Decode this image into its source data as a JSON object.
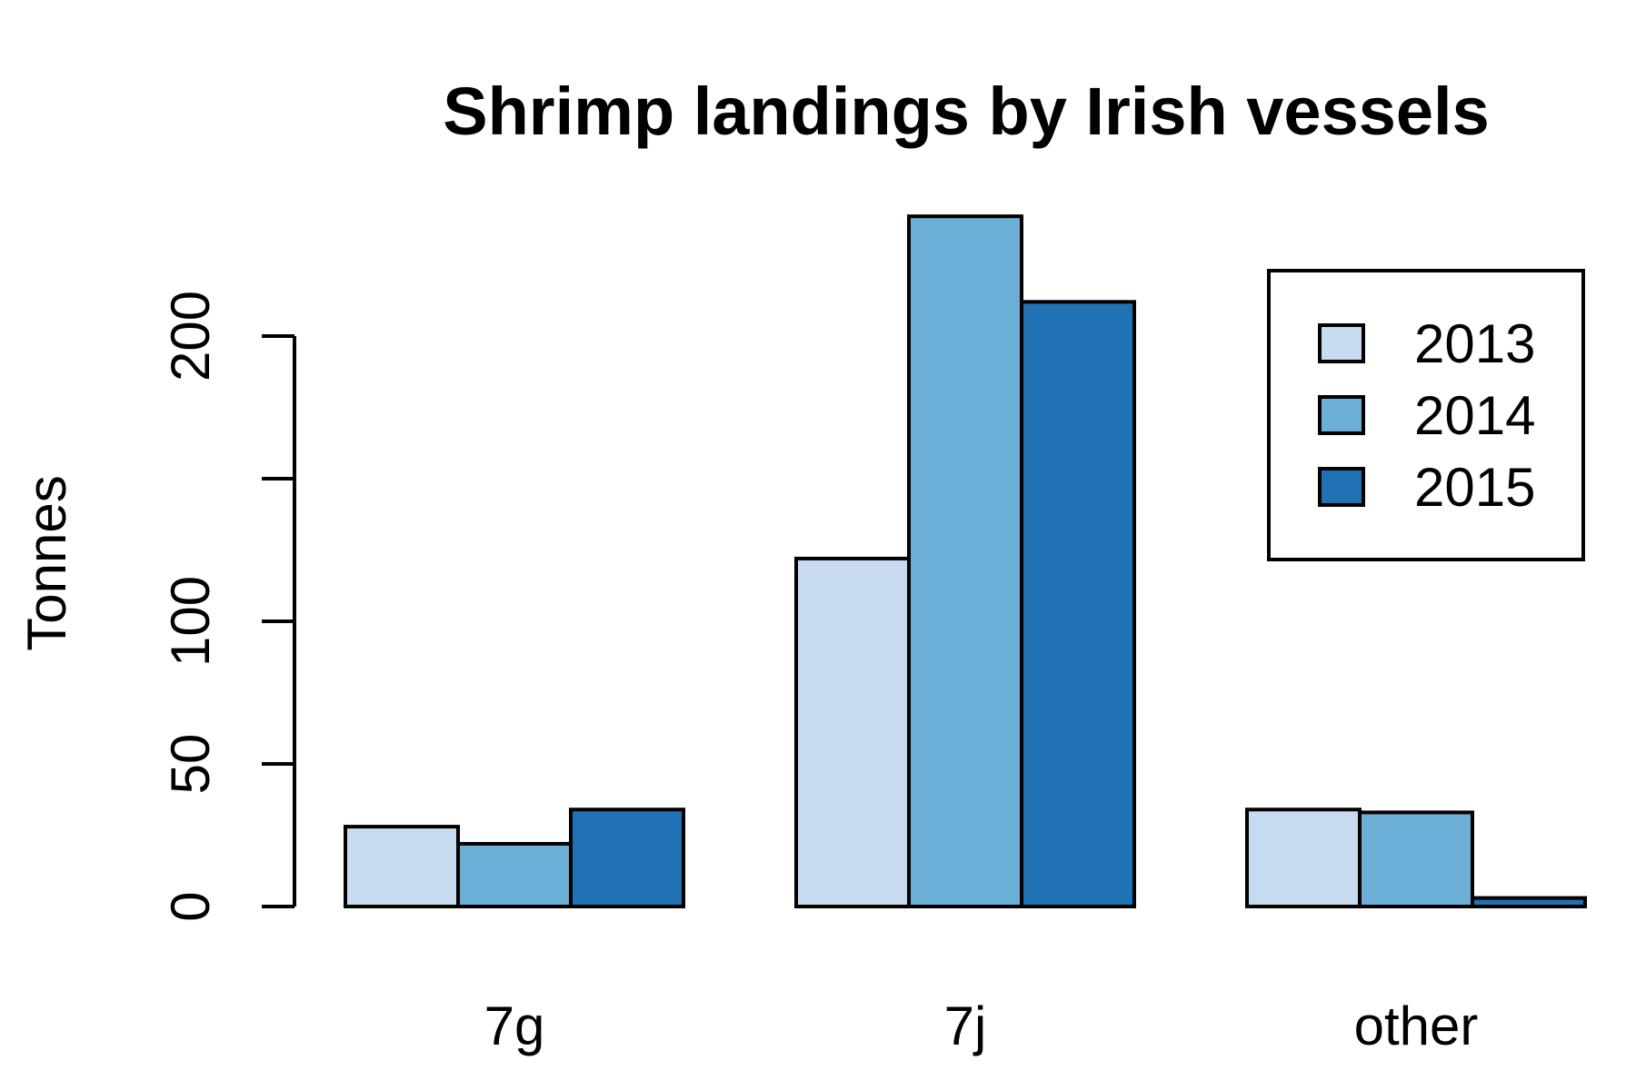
{
  "chart_data": {
    "type": "bar",
    "title": "Shrimp landings by Irish vessels",
    "xlabel": "",
    "ylabel": "Tonnes",
    "categories": [
      "7g",
      "7j",
      "other"
    ],
    "series": [
      {
        "name": "2013",
        "values": [
          28,
          122,
          34
        ],
        "color": "#c6dbef"
      },
      {
        "name": "2014",
        "values": [
          22,
          242,
          33
        ],
        "color": "#6baed6"
      },
      {
        "name": "2015",
        "values": [
          34,
          212,
          3
        ],
        "color": "#2171b5"
      }
    ],
    "yticks": [
      0,
      50,
      100,
      150,
      200
    ],
    "ytick_labels": [
      "0",
      "50",
      "100",
      "",
      "200"
    ],
    "ylim": [
      0,
      250
    ],
    "grid": false,
    "legend_position": "top-right"
  }
}
